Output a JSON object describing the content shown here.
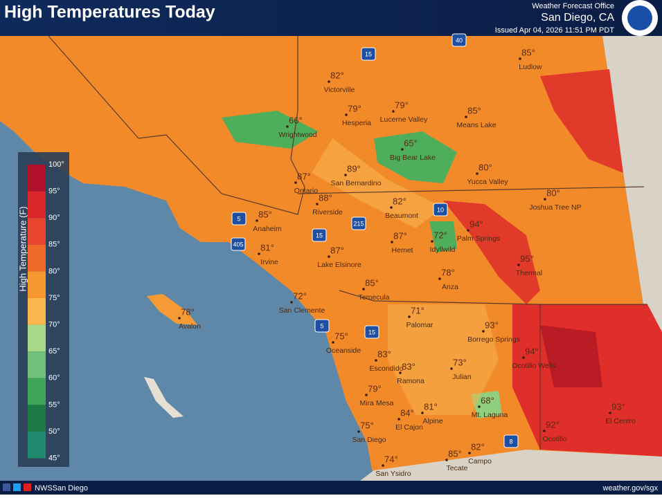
{
  "header": {
    "title": "High Temperatures Today",
    "office_line": "Weather Forecast Office",
    "office": "San Diego, CA",
    "issued": "Issued Apr 04, 2026 11:51 PM PDT"
  },
  "legend": {
    "title": "High Temperature (F)",
    "labels": [
      "100°",
      "95°",
      "90°",
      "85°",
      "80°",
      "75°",
      "70°",
      "65°",
      "60°",
      "55°",
      "50°",
      "45°"
    ]
  },
  "cities": [
    {
      "name": "Ludlow",
      "temp": "85°"
    },
    {
      "name": "Victorville",
      "temp": "82°"
    },
    {
      "name": "Hesperia",
      "temp": "79°"
    },
    {
      "name": "Lucerne Valley",
      "temp": "79°"
    },
    {
      "name": "Means Lake",
      "temp": "85°"
    },
    {
      "name": "Wrightwood",
      "temp": "66°"
    },
    {
      "name": "Big Bear Lake",
      "temp": "65°"
    },
    {
      "name": "Yucca Valley",
      "temp": "80°"
    },
    {
      "name": "Joshua Tree NP",
      "temp": "80°"
    },
    {
      "name": "Ontario",
      "temp": "87°"
    },
    {
      "name": "San Bernardino",
      "temp": "89°"
    },
    {
      "name": "Riverside",
      "temp": "88°"
    },
    {
      "name": "Anaheim",
      "temp": "85°"
    },
    {
      "name": "Beaumont",
      "temp": "82°"
    },
    {
      "name": "Palm Springs",
      "temp": "94°"
    },
    {
      "name": "Idyllwild",
      "temp": "72°"
    },
    {
      "name": "Hemet",
      "temp": "87°"
    },
    {
      "name": "Lake Elsinore",
      "temp": "87°"
    },
    {
      "name": "Irvine",
      "temp": "81°"
    },
    {
      "name": "Thermal",
      "temp": "95°"
    },
    {
      "name": "Anza",
      "temp": "78°"
    },
    {
      "name": "Temecula",
      "temp": "85°"
    },
    {
      "name": "Avalon",
      "temp": "78°"
    },
    {
      "name": "San Clemente",
      "temp": "72°"
    },
    {
      "name": "Palomar",
      "temp": "71°"
    },
    {
      "name": "Borrego Springs",
      "temp": "93°"
    },
    {
      "name": "Oceanside",
      "temp": "75°"
    },
    {
      "name": "Ocotillo Wells",
      "temp": "94°"
    },
    {
      "name": "Escondido",
      "temp": "83°"
    },
    {
      "name": "Ramona",
      "temp": "83°"
    },
    {
      "name": "Julian",
      "temp": "73°"
    },
    {
      "name": "Mira Mesa",
      "temp": "79°"
    },
    {
      "name": "Mt. Laguna",
      "temp": "68°"
    },
    {
      "name": "Alpine",
      "temp": "81°"
    },
    {
      "name": "El Cajon",
      "temp": "84°"
    },
    {
      "name": "San Diego",
      "temp": "75°"
    },
    {
      "name": "Ocotillo",
      "temp": "92°"
    },
    {
      "name": "El Centro",
      "temp": "93°"
    },
    {
      "name": "Campo",
      "temp": "82°"
    },
    {
      "name": "Tecate",
      "temp": "85°"
    },
    {
      "name": "San Ysidro",
      "temp": "74°"
    }
  ],
  "highways": [
    "15",
    "40",
    "10",
    "5",
    "405",
    "215",
    "15",
    "5",
    "15",
    "8"
  ],
  "footer": {
    "social": "NWSSan Diego",
    "url": "weather.gov/sgx"
  }
}
